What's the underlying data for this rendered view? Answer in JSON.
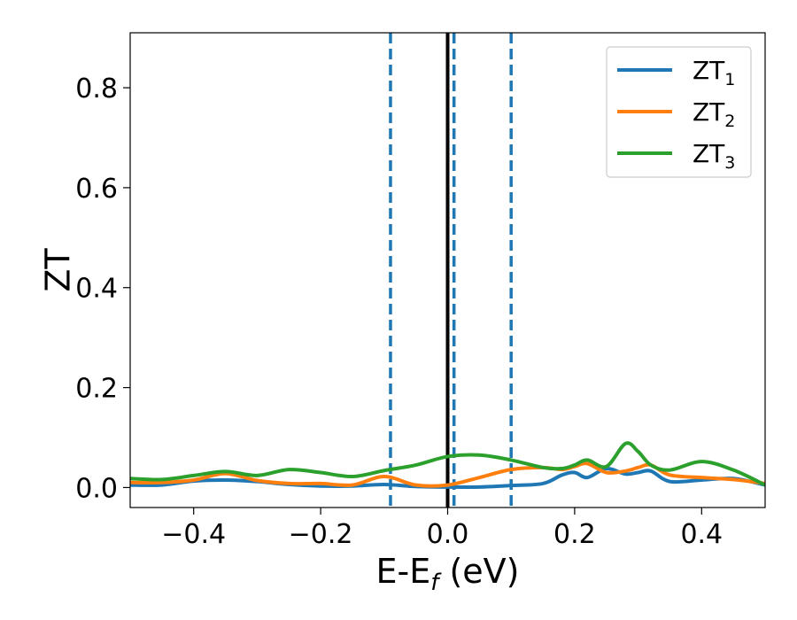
{
  "chart_data": {
    "type": "line",
    "xlabel_main": "E-E",
    "xlabel_sub": "f",
    "xlabel_unit": " (eV)",
    "ylabel": "ZT",
    "xlim": [
      -0.5,
      0.5
    ],
    "ylim": [
      -0.04,
      0.91
    ],
    "x_ticks": [
      -0.4,
      -0.2,
      0.0,
      0.2,
      0.4
    ],
    "x_tick_labels": [
      "−0.4",
      "−0.2",
      "0.0",
      "0.2",
      "0.4"
    ],
    "y_ticks": [
      0.0,
      0.2,
      0.4,
      0.6,
      0.8
    ],
    "y_tick_labels": [
      "0.0",
      "0.2",
      "0.4",
      "0.6",
      "0.8"
    ],
    "grid": false,
    "legend_position": "top-right",
    "vertical_lines": [
      {
        "x": -0.09,
        "style": "dashed",
        "color": "#1f77b4"
      },
      {
        "x": 0.0,
        "style": "solid",
        "color": "#000000"
      },
      {
        "x": 0.01,
        "style": "dashed",
        "color": "#1f77b4"
      },
      {
        "x": 0.1,
        "style": "dashed",
        "color": "#1f77b4"
      }
    ],
    "x": [
      -0.5,
      -0.45,
      -0.4,
      -0.35,
      -0.3,
      -0.25,
      -0.2,
      -0.15,
      -0.1,
      -0.05,
      0.0,
      0.05,
      0.1,
      0.15,
      0.18,
      0.2,
      0.22,
      0.25,
      0.28,
      0.3,
      0.32,
      0.35,
      0.4,
      0.45,
      0.5
    ],
    "series": [
      {
        "name": "ZT",
        "sub": "1",
        "color": "#1f77b4",
        "values": [
          0.005,
          0.005,
          0.013,
          0.015,
          0.012,
          0.006,
          0.003,
          0.003,
          0.006,
          0.002,
          0.001,
          0.001,
          0.004,
          0.008,
          0.025,
          0.03,
          0.02,
          0.038,
          0.027,
          0.03,
          0.033,
          0.012,
          0.015,
          0.018,
          0.005
        ]
      },
      {
        "name": "ZT",
        "sub": "2",
        "color": "#ff7f0e",
        "values": [
          0.01,
          0.01,
          0.015,
          0.028,
          0.014,
          0.008,
          0.008,
          0.005,
          0.022,
          0.005,
          0.005,
          0.02,
          0.036,
          0.04,
          0.036,
          0.042,
          0.048,
          0.03,
          0.033,
          0.04,
          0.045,
          0.025,
          0.02,
          0.016,
          0.008
        ]
      },
      {
        "name": "ZT",
        "sub": "3",
        "color": "#2ca02c",
        "values": [
          0.018,
          0.016,
          0.024,
          0.032,
          0.024,
          0.036,
          0.03,
          0.022,
          0.034,
          0.045,
          0.062,
          0.065,
          0.055,
          0.04,
          0.038,
          0.045,
          0.055,
          0.042,
          0.088,
          0.072,
          0.045,
          0.035,
          0.052,
          0.035,
          0.005
        ]
      }
    ]
  }
}
